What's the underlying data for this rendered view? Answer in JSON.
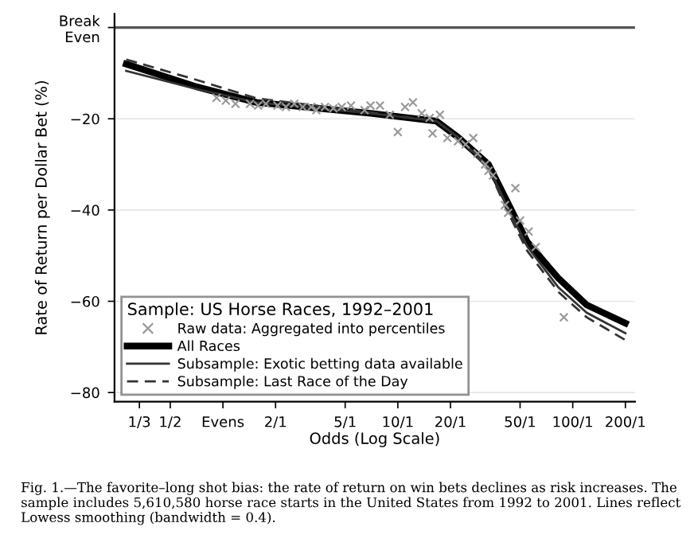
{
  "chart_data": {
    "type": "line",
    "xlabel": "Odds (Log Scale)",
    "ylabel": "Rate of Return per Dollar Bet (%)",
    "legend_title": "Sample: US Horse Races, 1992–2001",
    "log": "x",
    "xlim": [
      0.24,
      227
    ],
    "ylim": [
      -82,
      3
    ],
    "xticks": [
      {
        "value": 0.333,
        "label": "1/3"
      },
      {
        "value": 0.5,
        "label": "1/2"
      },
      {
        "value": 1,
        "label": "Evens"
      },
      {
        "value": 2,
        "label": "2/1"
      },
      {
        "value": 5,
        "label": "5/1"
      },
      {
        "value": 10,
        "label": "10/1"
      },
      {
        "value": 20,
        "label": "20/1"
      },
      {
        "value": 50,
        "label": "50/1"
      },
      {
        "value": 100,
        "label": "100/1"
      },
      {
        "value": 200,
        "label": "200/1"
      }
    ],
    "yticks": [
      {
        "value": 0,
        "label": "Break\nEven"
      },
      {
        "value": -20,
        "label": "−20"
      },
      {
        "value": -40,
        "label": "−40"
      },
      {
        "value": -60,
        "label": "−60"
      },
      {
        "value": -80,
        "label": "−80"
      }
    ],
    "grid": "y",
    "legend": "bottom left",
    "ref_lines": [
      {
        "axis": "y",
        "value": 0,
        "label": null,
        "color": "#555555"
      }
    ],
    "series": [
      {
        "name": "Raw data: Aggregated into percentiles",
        "type": "scatter",
        "marker": "cross",
        "color": "#999999",
        "x": [
          0.92,
          1.04,
          1.18,
          1.43,
          1.59,
          1.76,
          2.05,
          2.29,
          2.56,
          2.86,
          3.2,
          3.42,
          3.83,
          4.28,
          4.78,
          5.4,
          6.45,
          6.98,
          7.9,
          9.0,
          10,
          11,
          12.2,
          13.7,
          15.2,
          15.8,
          17.4,
          19.2,
          22.1,
          24.4,
          27,
          28.6,
          31.6,
          33,
          35,
          41,
          42.7,
          47,
          50,
          56,
          61.5,
          89
        ],
        "values": [
          -15.4,
          -16.0,
          -16.7,
          -16.7,
          -17.1,
          -16.7,
          -17.1,
          -17.4,
          -16.7,
          -17.4,
          -17.4,
          -18.1,
          -17.4,
          -17.7,
          -17.4,
          -17.1,
          -18.1,
          -17.1,
          -17.1,
          -19.1,
          -22.9,
          -17.4,
          -16.4,
          -18.8,
          -19.8,
          -23.2,
          -19.1,
          -24.2,
          -24.9,
          -25.6,
          -24.2,
          -27.6,
          -30.0,
          -31.4,
          -32.4,
          -38.9,
          -40.6,
          -35.2,
          -42.3,
          -44.7,
          -48.1,
          -63.5
        ]
      },
      {
        "name": "All Races",
        "line_style": "solid",
        "color": "#000000",
        "x": [
          0.28,
          0.71,
          1.55,
          7,
          16.6,
          22,
          33,
          42,
          55,
          83,
          120,
          200
        ],
        "values": [
          -8,
          -13,
          -16.4,
          -18.8,
          -20.5,
          -24,
          -30,
          -38,
          -47,
          -55,
          -60.8,
          -64.8
        ]
      },
      {
        "name": "Subsample: Exotic betting data available",
        "line_style": "solid",
        "color": "#333333",
        "x": [
          0.28,
          0.71,
          1.55,
          7,
          16.6,
          22,
          33,
          42,
          55,
          83,
          120,
          200
        ],
        "values": [
          -9.5,
          -13.5,
          -16.4,
          -18.8,
          -20.5,
          -24,
          -30.5,
          -39,
          -48,
          -57,
          -62.5,
          -67
        ]
      },
      {
        "name": "Subsample: Last Race of the Day",
        "line_style": "dashed",
        "color": "#333333",
        "x": [
          0.28,
          0.71,
          1.55,
          7,
          16.6,
          22,
          33,
          42,
          55,
          83,
          120,
          200
        ],
        "values": [
          -7,
          -11.5,
          -15.5,
          -18.6,
          -20.5,
          -24,
          -31,
          -40,
          -49,
          -58,
          -63.5,
          -68.5
        ]
      }
    ],
    "annotations": [
      "Fig. 1.—The favorite–long shot bias: the rate of return on win bets declines as risk increases. The sample includes 5,610,580 horse race starts in the United States from 1992 to 2001. Lines reflect Lowess smoothing (bandwidth = 0.4)."
    ]
  }
}
